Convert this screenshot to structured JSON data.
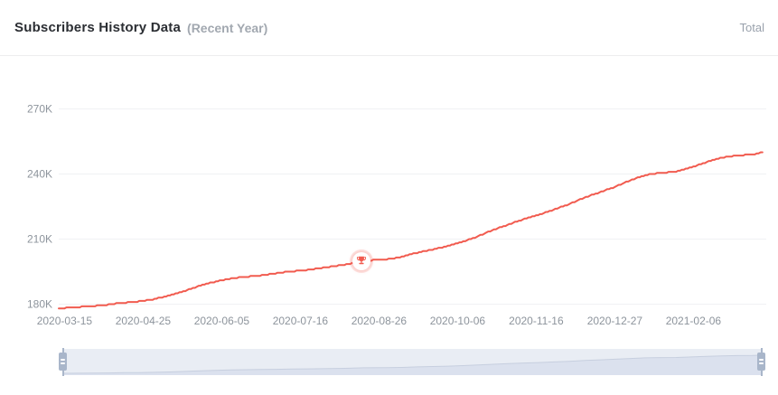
{
  "header": {
    "title": "Subscribers History Data",
    "subtitle": "(Recent Year)",
    "legend_total": "Total"
  },
  "colors": {
    "line": "#f15b4f",
    "milestone_ring": "rgba(241,91,79,0.16)",
    "grid": "#f0f1f4",
    "slider_track": "#e9edf4",
    "slider_shadow_fill": "#dbe1ee",
    "slider_shadow_line": "#c7cfdf",
    "slider_handle": "#a9b6ca"
  },
  "chart_data": {
    "type": "line",
    "title": "Subscribers History Data (Recent Year)",
    "series_name": "Total",
    "step_like": true,
    "grid": "horizontal",
    "x_axis": {
      "start_date": "2020-03-12",
      "end_date": "2021-03-14",
      "tick_labels": [
        "2020-03-15",
        "2020-04-25",
        "2020-06-05",
        "2020-07-16",
        "2020-08-26",
        "2020-10-06",
        "2020-11-16",
        "2020-12-27",
        "2021-02-06"
      ],
      "tick_interval_days": 41
    },
    "y_axis": {
      "ticks": [
        {
          "label": "180K",
          "value": 180000
        },
        {
          "label": "210K",
          "value": 210000
        },
        {
          "label": "240K",
          "value": 240000
        },
        {
          "label": "270K",
          "value": 270000
        }
      ],
      "min": 175000,
      "max": 272000
    },
    "points": [
      [
        "2020-03-12",
        178000
      ],
      [
        "2020-03-20",
        178500
      ],
      [
        "2020-03-28",
        179000
      ],
      [
        "2020-04-05",
        179500
      ],
      [
        "2020-04-13",
        180500
      ],
      [
        "2020-04-21",
        181000
      ],
      [
        "2020-04-29",
        182000
      ],
      [
        "2020-05-07",
        183500
      ],
      [
        "2020-05-15",
        185500
      ],
      [
        "2020-05-23",
        188000
      ],
      [
        "2020-05-31",
        190000
      ],
      [
        "2020-06-08",
        191500
      ],
      [
        "2020-06-16",
        192500
      ],
      [
        "2020-06-24",
        193000
      ],
      [
        "2020-07-02",
        194000
      ],
      [
        "2020-07-10",
        195000
      ],
      [
        "2020-07-18",
        195500
      ],
      [
        "2020-07-26",
        196500
      ],
      [
        "2020-08-03",
        197500
      ],
      [
        "2020-08-11",
        198500
      ],
      [
        "2020-08-17",
        200000
      ],
      [
        "2020-08-29",
        200500
      ],
      [
        "2020-09-06",
        201500
      ],
      [
        "2020-09-14",
        203500
      ],
      [
        "2020-09-22",
        205000
      ],
      [
        "2020-09-30",
        206500
      ],
      [
        "2020-10-08",
        208500
      ],
      [
        "2020-10-16",
        211000
      ],
      [
        "2020-10-24",
        214000
      ],
      [
        "2020-11-01",
        216500
      ],
      [
        "2020-11-09",
        219000
      ],
      [
        "2020-11-17",
        221000
      ],
      [
        "2020-11-25",
        223500
      ],
      [
        "2020-12-03",
        226000
      ],
      [
        "2020-12-11",
        229000
      ],
      [
        "2020-12-19",
        231500
      ],
      [
        "2020-12-27",
        234000
      ],
      [
        "2021-01-04",
        237000
      ],
      [
        "2021-01-12",
        239500
      ],
      [
        "2021-01-20",
        240500
      ],
      [
        "2021-01-28",
        241000
      ],
      [
        "2021-02-05",
        243000
      ],
      [
        "2021-02-13",
        245500
      ],
      [
        "2021-02-21",
        247500
      ],
      [
        "2021-03-01",
        248500
      ],
      [
        "2021-03-09",
        249000
      ],
      [
        "2021-03-14",
        250000
      ]
    ],
    "milestone": {
      "date": "2020-08-17",
      "value": 200000,
      "icon": "trophy"
    }
  }
}
